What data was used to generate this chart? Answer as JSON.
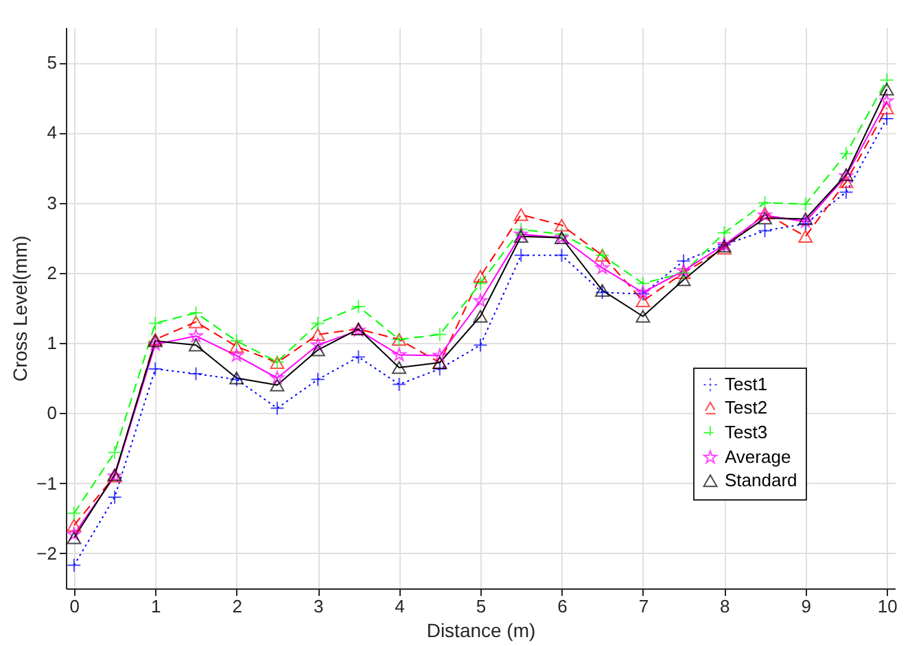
{
  "chart_data": {
    "type": "line",
    "xlabel": "Distance (m)",
    "ylabel": "Cross Level(mm)",
    "x": [
      0,
      0.5,
      1,
      1.5,
      2,
      2.5,
      3,
      3.5,
      4,
      4.5,
      5,
      5.5,
      6,
      6.5,
      7,
      7.5,
      8,
      8.5,
      9,
      9.5,
      10
    ],
    "series": [
      {
        "name": "Test1",
        "color": "#0000ff",
        "marker": "cross",
        "line_style": "dotted",
        "values": [
          -2.17,
          -1.2,
          0.63,
          0.56,
          0.48,
          0.07,
          0.48,
          0.8,
          0.41,
          0.63,
          0.97,
          2.25,
          2.25,
          1.72,
          1.7,
          2.17,
          2.4,
          2.6,
          2.7,
          3.15,
          4.2
        ]
      },
      {
        "name": "Test2",
        "color": "#ff0000",
        "marker": "triangle",
        "line_style": "dashed",
        "values": [
          -1.6,
          -0.9,
          1.05,
          1.3,
          0.95,
          0.72,
          1.12,
          1.2,
          1.05,
          0.72,
          1.95,
          2.83,
          2.68,
          2.25,
          1.6,
          2.0,
          2.35,
          2.85,
          2.52,
          3.3,
          4.35
        ]
      },
      {
        "name": "Test3",
        "color": "#00ff00",
        "marker": "cross",
        "line_style": "dashed",
        "values": [
          -1.43,
          -0.56,
          1.28,
          1.43,
          1.03,
          0.73,
          1.28,
          1.52,
          1.05,
          1.12,
          1.85,
          2.62,
          2.55,
          2.25,
          1.85,
          2.0,
          2.57,
          3.0,
          2.98,
          3.7,
          4.75
        ]
      },
      {
        "name": "Average",
        "color": "#ff00ff",
        "marker": "star",
        "line_style": "solid",
        "values": [
          -1.73,
          -0.9,
          0.98,
          1.1,
          0.82,
          0.5,
          0.97,
          1.18,
          0.83,
          0.82,
          1.6,
          2.55,
          2.5,
          2.07,
          1.72,
          2.03,
          2.4,
          2.82,
          2.73,
          3.38,
          4.45
        ]
      },
      {
        "name": "Standard",
        "color": "#000000",
        "marker": "triangle",
        "line_style": "solid",
        "values": [
          -1.78,
          -0.88,
          1.03,
          0.97,
          0.5,
          0.4,
          0.9,
          1.2,
          0.65,
          0.72,
          1.38,
          2.52,
          2.5,
          1.75,
          1.38,
          1.9,
          2.38,
          2.78,
          2.77,
          3.4,
          4.62
        ]
      }
    ],
    "xlim": [
      -0.1,
      10.1
    ],
    "xticks": [
      0,
      1,
      2,
      3,
      4,
      5,
      6,
      7,
      8,
      9,
      10
    ],
    "ylim": [
      -2.5,
      5.5
    ],
    "yticks": [
      -2,
      -1,
      0,
      1,
      2,
      3,
      4,
      5
    ],
    "grid": true,
    "legend": "bottom right"
  }
}
